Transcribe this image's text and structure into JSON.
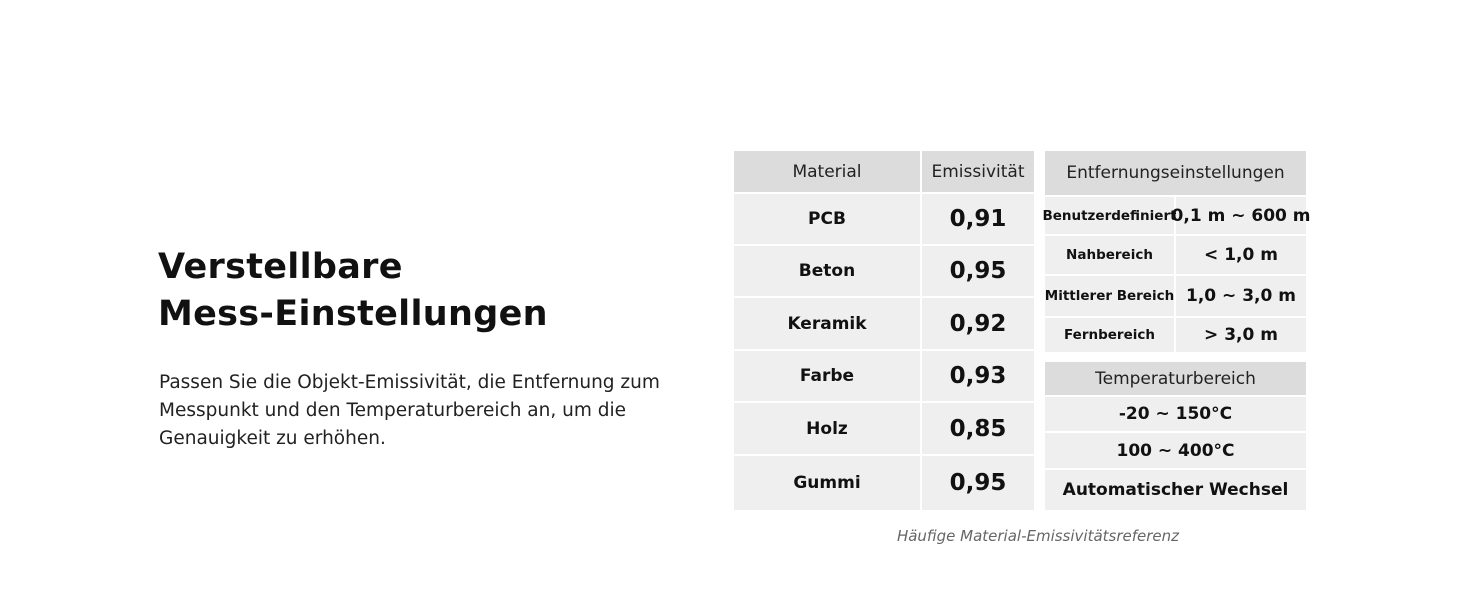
{
  "heading": [
    "Verstellbare",
    "Mess-Einstellungen"
  ],
  "description": "Passen Sie die Objekt-Emissivität, die Entfernung zum Messpunkt und den Temperaturbereich an, um die Genauigkeit zu erhöhen.",
  "emissivity_table": {
    "headers": [
      "Material",
      "Emissivität"
    ],
    "rows": [
      [
        "PCB",
        "0,91"
      ],
      [
        "Beton",
        "0,95"
      ],
      [
        "Keramik",
        "0,92"
      ],
      [
        "Farbe",
        "0,93"
      ],
      [
        "Holz",
        "0,85"
      ],
      [
        "Gummi",
        "0,95"
      ]
    ]
  },
  "distance_table": {
    "header": "Entfernungseinstellungen",
    "rows": [
      [
        "Benutzerdefiniert",
        "0,1 m ~ 600 m"
      ],
      [
        "Nahbereich",
        "< 1,0 m"
      ],
      [
        "Mittlerer Bereich",
        "1,0 ~ 3,0 m"
      ],
      [
        "Fernbereich",
        "> 3,0 m"
      ]
    ]
  },
  "temperature_table": {
    "header": "Temperaturbereich",
    "rows": [
      "-20 ~ 150°C",
      "100 ~ 400°C",
      "Automatischer Wechsel"
    ]
  },
  "caption": "Häufige Material-Emissivitätsreferenz",
  "colors": {
    "header_bg": "#dcdcdc",
    "cell_bg": "#efefef"
  }
}
